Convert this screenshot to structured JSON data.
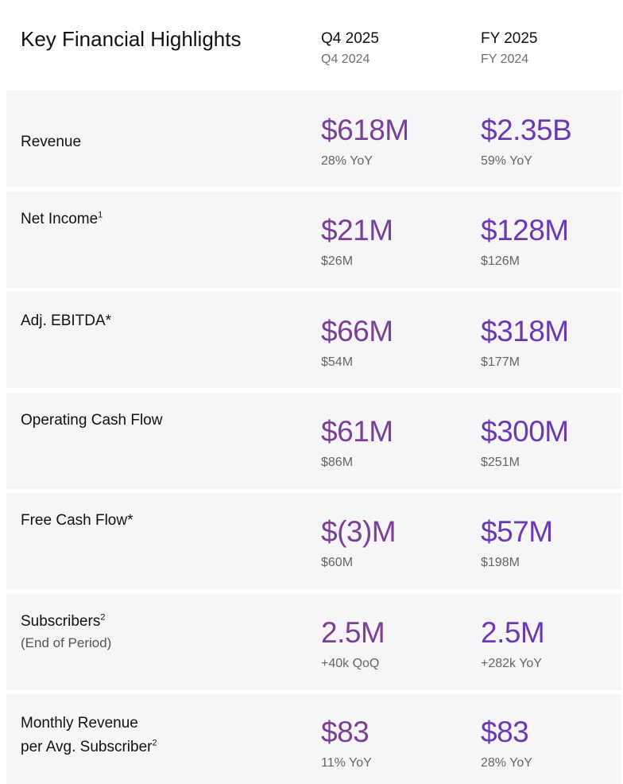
{
  "header": {
    "title": "Key Financial Highlights",
    "columns": [
      {
        "main": "Q4 2025",
        "sub": "Q4 2024"
      },
      {
        "main": "FY 2025",
        "sub": "FY 2024"
      }
    ]
  },
  "colors": {
    "q_value": "#7b3f98",
    "fy_value": "#6a3ab4",
    "row_bg": "#f6f6f8"
  },
  "rows": [
    {
      "label": "Revenue",
      "sup": "",
      "sublabel": "",
      "q": {
        "value": "$618M",
        "compare": "28% YoY"
      },
      "fy": {
        "value": "$2.35B",
        "compare": "59% YoY"
      }
    },
    {
      "label": "Net Income",
      "sup": "1",
      "sublabel": "",
      "q": {
        "value": "$21M",
        "compare": "$26M"
      },
      "fy": {
        "value": "$128M",
        "compare": "$126M"
      }
    },
    {
      "label": "Adj. EBITDA*",
      "sup": "",
      "sublabel": "",
      "q": {
        "value": "$66M",
        "compare": "$54M"
      },
      "fy": {
        "value": "$318M",
        "compare": "$177M"
      }
    },
    {
      "label": "Operating Cash Flow",
      "sup": "",
      "sublabel": "",
      "q": {
        "value": "$61M",
        "compare": "$86M"
      },
      "fy": {
        "value": "$300M",
        "compare": "$251M"
      }
    },
    {
      "label": "Free Cash Flow*",
      "sup": "",
      "sublabel": "",
      "q": {
        "value": "$(3)M",
        "compare": "$60M"
      },
      "fy": {
        "value": "$57M",
        "compare": "$198M"
      }
    },
    {
      "label": "Subscribers",
      "sup": "2",
      "sublabel": "(End of Period)",
      "q": {
        "value": "2.5M",
        "compare": "+40k QoQ"
      },
      "fy": {
        "value": "2.5M",
        "compare": "+282k YoY"
      }
    },
    {
      "label": "Monthly Revenue",
      "label2": "per Avg. Subscriber",
      "sup": "2",
      "sublabel": "",
      "q": {
        "value": "$83",
        "compare": "11% YoY"
      },
      "fy": {
        "value": "$83",
        "compare": "28% YoY"
      }
    }
  ]
}
